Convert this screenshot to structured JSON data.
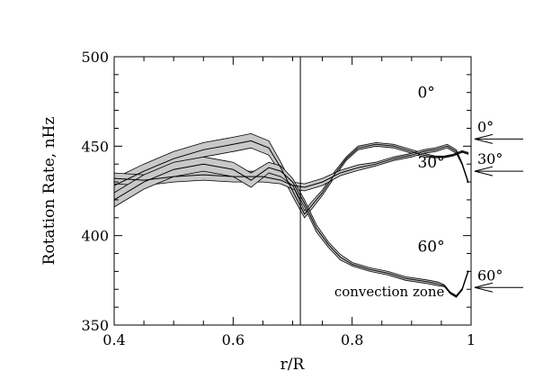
{
  "chart_data": {
    "type": "line",
    "title": "",
    "xlabel": "r/R",
    "ylabel": "Rotation Rate, nHz",
    "xlim": [
      0.4,
      1.0
    ],
    "ylim": [
      350,
      500
    ],
    "xticks": [
      0.4,
      0.6,
      0.8,
      1.0
    ],
    "xtick_labels": [
      "0.4",
      "0.6",
      "0.8",
      "1"
    ],
    "yticks": [
      350,
      400,
      450,
      500
    ],
    "ytick_labels": [
      "350",
      "400",
      "450",
      "500"
    ],
    "grid": false,
    "legend": "none",
    "series": [
      {
        "name": "0°",
        "x": [
          0.4,
          0.45,
          0.5,
          0.55,
          0.6,
          0.63,
          0.66,
          0.68,
          0.7,
          0.72,
          0.73,
          0.75,
          0.77,
          0.79,
          0.81,
          0.84,
          0.87,
          0.9,
          0.92,
          0.94,
          0.955,
          0.97,
          0.985,
          0.995
        ],
        "y": [
          428,
          436,
          443,
          448,
          451,
          453,
          449,
          438,
          425,
          412,
          416,
          424,
          434,
          443,
          449,
          451,
          450,
          447,
          445,
          444,
          444,
          445,
          447,
          446
        ],
        "band": [
          4,
          4,
          4,
          4,
          4,
          4,
          4,
          3,
          3,
          2,
          2,
          1.5,
          1.5,
          1,
          1,
          1,
          1,
          1,
          1,
          0.5,
          0.5,
          0.5,
          0.5,
          0.5
        ]
      },
      {
        "name": "30°",
        "x": [
          0.4,
          0.45,
          0.5,
          0.55,
          0.6,
          0.65,
          0.68,
          0.7,
          0.72,
          0.75,
          0.78,
          0.81,
          0.84,
          0.87,
          0.9,
          0.92,
          0.94,
          0.96,
          0.975,
          0.985,
          0.995
        ],
        "y": [
          432,
          431,
          433,
          434,
          433,
          433,
          431,
          428,
          427,
          430,
          435,
          438,
          440,
          443,
          445,
          447,
          448,
          450,
          447,
          440,
          430
        ],
        "band": [
          3,
          3,
          3,
          3,
          3,
          3,
          2,
          2,
          2,
          2,
          1.5,
          1.5,
          1,
          1,
          1,
          1,
          1,
          1,
          1,
          0.5,
          0.5
        ]
      },
      {
        "name": "60°",
        "x": [
          0.4,
          0.45,
          0.5,
          0.55,
          0.6,
          0.63,
          0.66,
          0.68,
          0.7,
          0.72,
          0.74,
          0.76,
          0.78,
          0.8,
          0.83,
          0.86,
          0.89,
          0.91,
          0.93,
          0.945,
          0.955,
          0.965,
          0.975,
          0.985,
          0.995
        ],
        "y": [
          420,
          430,
          437,
          440,
          437,
          431,
          438,
          436,
          430,
          418,
          404,
          395,
          388,
          384,
          381,
          379,
          376,
          375,
          374,
          373,
          372,
          368,
          366,
          370,
          380
        ],
        "band": [
          4,
          4,
          4,
          4,
          4,
          4,
          3,
          3,
          2,
          2,
          2,
          1.5,
          1.5,
          1,
          1,
          1,
          1,
          1,
          1,
          1,
          0.5,
          0.5,
          0.5,
          0.5,
          0.5
        ]
      }
    ],
    "series_labels": [
      {
        "text": "0°",
        "x": 0.91,
        "y": 477
      },
      {
        "text": "30°",
        "x": 0.91,
        "y": 438
      },
      {
        "text": "60°",
        "x": 0.91,
        "y": 391
      }
    ],
    "vertical_line": {
      "x": 0.713,
      "label": "convection zone",
      "label_x": 0.77,
      "label_y": 366
    },
    "surface_arrows": [
      {
        "label": "0°",
        "y": 454
      },
      {
        "label": "30°",
        "y": 436
      },
      {
        "label": "60°",
        "y": 371
      }
    ]
  }
}
